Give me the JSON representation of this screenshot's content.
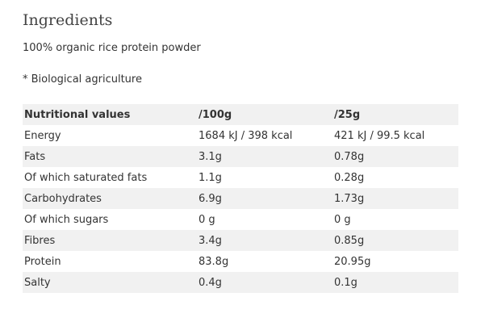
{
  "title": "Ingredients",
  "lines": [
    "100% organic rice protein powder",
    "* Biological agriculture"
  ],
  "table": {
    "header": [
      "Nutritional values",
      "/100g",
      "/25g"
    ],
    "rows": [
      [
        "Energy",
        "1684 kJ / 398 kcal",
        "421 kJ / 99.5 kcal"
      ],
      [
        "Fats",
        "3.1g",
        "0.78g"
      ],
      [
        "Of which saturated fats",
        "1.1g",
        "0.28g"
      ],
      [
        "Carbohydrates",
        "6.9g",
        "1.73g"
      ],
      [
        "Of which sugars",
        "0 g",
        "0 g"
      ],
      [
        "Fibres",
        "3.4g",
        "0.85g"
      ],
      [
        "Protein",
        "83.8g",
        "20.95g"
      ],
      [
        "Salty",
        "0.4g",
        "0.1g"
      ]
    ]
  }
}
